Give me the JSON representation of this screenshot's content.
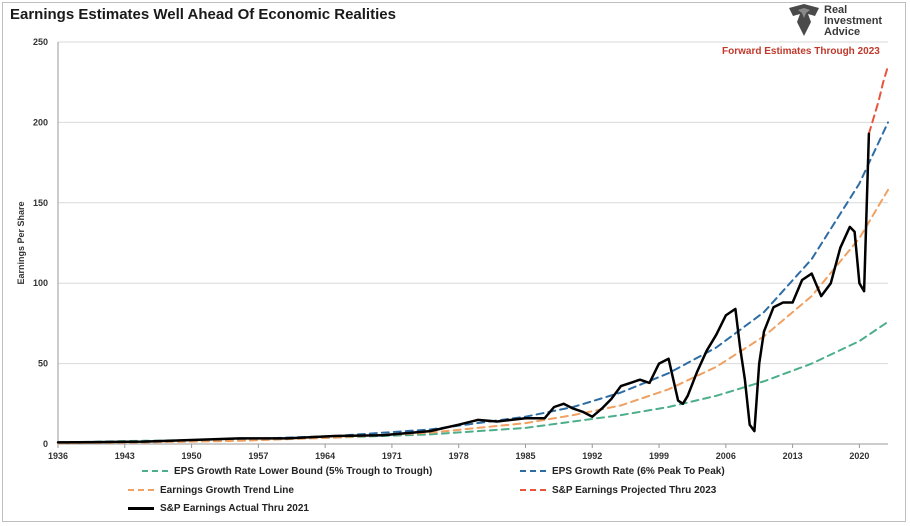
{
  "header": {
    "title": "Earnings Estimates Well Ahead Of Economic Realities",
    "logo_lines": [
      "Real",
      "Investment",
      "Advice"
    ],
    "annotation": "Forward Estimates Through 2023"
  },
  "colors": {
    "lower_bound": "#4caf8a",
    "peak_rate": "#2e6da4",
    "trend": "#f0a060",
    "projected": "#e8553c",
    "actual": "#000000",
    "annotation": "#c0392b",
    "grid": "#d9d9d9"
  },
  "chart_data": {
    "type": "line",
    "title": "Earnings Estimates Well Ahead Of Economic Realities",
    "xlabel": "",
    "ylabel": "Earnings Per Share",
    "xlim": [
      1936,
      2023
    ],
    "ylim": [
      0,
      250
    ],
    "xticks": [
      1936,
      1943,
      1950,
      1957,
      1964,
      1971,
      1978,
      1985,
      1992,
      1999,
      2006,
      2013,
      2020
    ],
    "yticks": [
      0,
      50,
      100,
      150,
      200,
      250
    ],
    "grid": "horizontal",
    "legend_position": "bottom",
    "series": [
      {
        "name": "EPS Growth Rate Lower Bound (5% Trough to Trough)",
        "style": "dashed",
        "color_key": "lower_bound",
        "x": [
          1936,
          1945,
          1955,
          1965,
          1975,
          1985,
          1995,
          2000,
          2005,
          2010,
          2015,
          2020,
          2023
        ],
        "y": [
          1,
          2,
          2.8,
          4,
          6,
          10,
          18,
          23,
          30,
          39,
          50,
          64,
          76
        ]
      },
      {
        "name": "EPS Growth Rate (6% Peak To Peak)",
        "style": "dashed",
        "color_key": "peak_rate",
        "x": [
          1936,
          1945,
          1955,
          1965,
          1975,
          1985,
          1990,
          1995,
          2000,
          2005,
          2010,
          2015,
          2020,
          2023
        ],
        "y": [
          1,
          1.7,
          2.9,
          5,
          9,
          17,
          23,
          32,
          44,
          60,
          82,
          115,
          162,
          200
        ]
      },
      {
        "name": "Earnings Growth Trend Line",
        "style": "dashed",
        "color_key": "trend",
        "x": [
          1936,
          1945,
          1955,
          1965,
          1975,
          1985,
          1990,
          1995,
          2000,
          2005,
          2010,
          2015,
          2020,
          2023
        ],
        "y": [
          0.5,
          1,
          2,
          4,
          7,
          13,
          18,
          24,
          34,
          48,
          67,
          92,
          128,
          158
        ]
      },
      {
        "name": "S&P Earnings Projected Thru 2023",
        "style": "dashed",
        "color_key": "projected",
        "x": [
          2021,
          2021.5,
          2022,
          2022.5,
          2023
        ],
        "y": [
          193,
          203,
          213,
          225,
          235
        ]
      },
      {
        "name": "S&P Earnings Actual Thru 2021",
        "style": "solid",
        "color_key": "actual",
        "x": [
          1936,
          1940,
          1945,
          1950,
          1955,
          1960,
          1965,
          1970,
          1975,
          1978,
          1980,
          1982,
          1985,
          1987,
          1988,
          1989,
          1990,
          1991,
          1992,
          1993,
          1994,
          1995,
          1996,
          1997,
          1998,
          1999,
          2000,
          2001,
          2001.5,
          2002,
          2003,
          2004,
          2005,
          2006,
          2007,
          2007.5,
          2008,
          2008.5,
          2009,
          2009.5,
          2010,
          2011,
          2012,
          2013,
          2014,
          2015,
          2016,
          2017,
          2018,
          2019,
          2019.5,
          2020,
          2020.5,
          2021
        ],
        "y": [
          1,
          1.2,
          1.5,
          2.5,
          3.5,
          3.5,
          5,
          5.5,
          8,
          12,
          15,
          14,
          16,
          16,
          23,
          25,
          22,
          20,
          17,
          22,
          28,
          36,
          38,
          40,
          38,
          50,
          53,
          27,
          25,
          30,
          45,
          58,
          68,
          80,
          84,
          60,
          40,
          12,
          8,
          50,
          70,
          85,
          88,
          88,
          102,
          106,
          92,
          100,
          122,
          135,
          132,
          100,
          95,
          193
        ]
      }
    ]
  }
}
